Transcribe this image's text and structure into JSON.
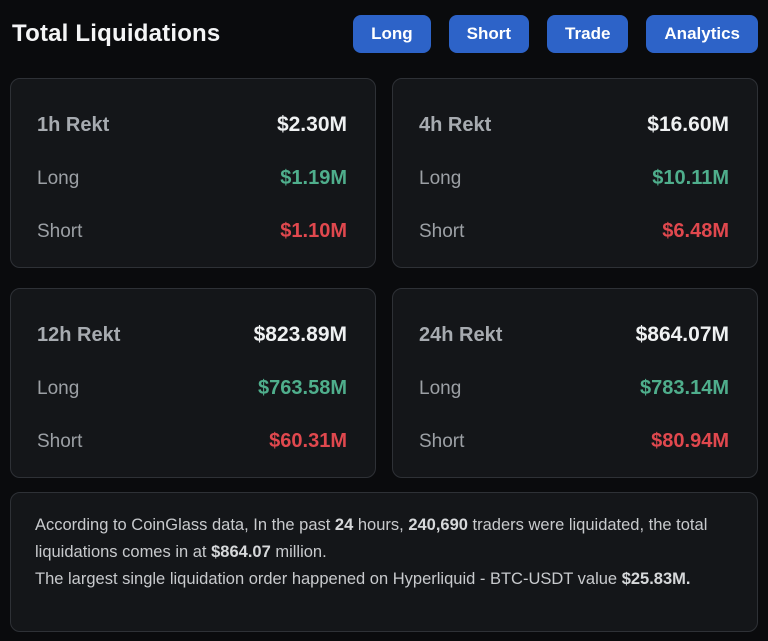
{
  "header": {
    "title": "Total Liquidations",
    "buttons": [
      {
        "label": "Long"
      },
      {
        "label": "Short"
      },
      {
        "label": "Trade"
      },
      {
        "label": "Analytics"
      }
    ]
  },
  "labels": {
    "long": "Long",
    "short": "Short"
  },
  "cards": [
    {
      "title": "1h Rekt",
      "total": "$2.30M",
      "long": "$1.19M",
      "short": "$1.10M"
    },
    {
      "title": "4h Rekt",
      "total": "$16.60M",
      "long": "$10.11M",
      "short": "$6.48M"
    },
    {
      "title": "12h Rekt",
      "total": "$823.89M",
      "long": "$763.58M",
      "short": "$60.31M"
    },
    {
      "title": "24h Rekt",
      "total": "$864.07M",
      "long": "$783.14M",
      "short": "$80.94M"
    }
  ],
  "summary": {
    "paragraphs": [
      [
        {
          "t": "According to CoinGlass data, In the past ",
          "b": false
        },
        {
          "t": "24",
          "b": true
        },
        {
          "t": " hours, ",
          "b": false
        },
        {
          "t": "240,690",
          "b": true
        },
        {
          "t": " traders were liquidated, the total liquidations comes in at ",
          "b": false
        },
        {
          "t": "$864.07",
          "b": true
        },
        {
          "t": " million.",
          "b": false
        }
      ],
      [
        {
          "t": "The largest single liquidation order happened on Hyperliquid - BTC-USDT value ",
          "b": false
        },
        {
          "t": "$25.83M.",
          "b": true
        }
      ]
    ]
  },
  "colors": {
    "accent_blue": "#2d63c8",
    "long_green": "#4fae8c",
    "short_red": "#e0484e",
    "page_bg": "#0a0b0d",
    "card_bg": "#141619",
    "card_border": "#2e3136"
  }
}
